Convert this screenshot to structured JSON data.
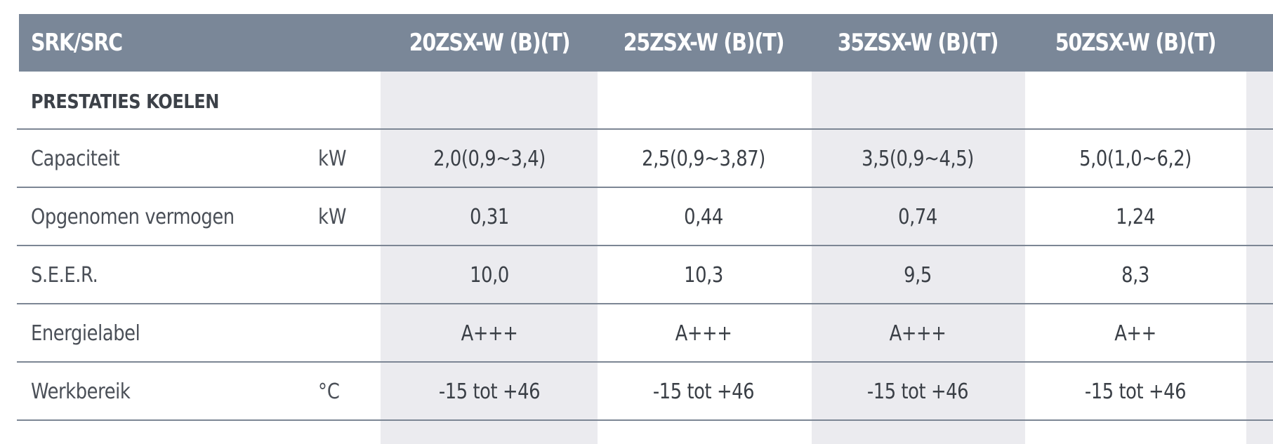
{
  "table": {
    "header": {
      "label": "SRK/SRC",
      "models": [
        "20ZSX-W (B)(T)",
        "25ZSX-W (B)(T)",
        "35ZSX-W (B)(T)",
        "50ZSX-W (B)(T)"
      ]
    },
    "section_title": "PRESTATIES KOELEN",
    "rows": [
      {
        "label": "Capaciteit",
        "unit": "kW",
        "values": [
          "2,0(0,9~3,4)",
          "2,5(0,9~3,87)",
          "3,5(0,9~4,5)",
          "5,0(1,0~6,2)"
        ]
      },
      {
        "label": "Opgenomen vermogen",
        "unit": "kW",
        "values": [
          "0,31",
          "0,44",
          "0,74",
          "1,24"
        ]
      },
      {
        "label": "S.E.E.R.",
        "unit": "",
        "values": [
          "10,0",
          "10,3",
          "9,5",
          "8,3"
        ]
      },
      {
        "label": "Energielabel",
        "unit": "",
        "values": [
          "A+++",
          "A+++",
          "A+++",
          "A++"
        ]
      },
      {
        "label": "Werkbereik",
        "unit": "°C",
        "values": [
          "-15 tot +46",
          "-15 tot +46",
          "-15 tot +46",
          "-15 tot +46"
        ]
      }
    ]
  },
  "colors": {
    "header_bg": "#7a8798",
    "header_text": "#ffffff",
    "column_stripe": "#ebebef",
    "rule": "#7c8694",
    "body_text": "#4a4f57"
  }
}
